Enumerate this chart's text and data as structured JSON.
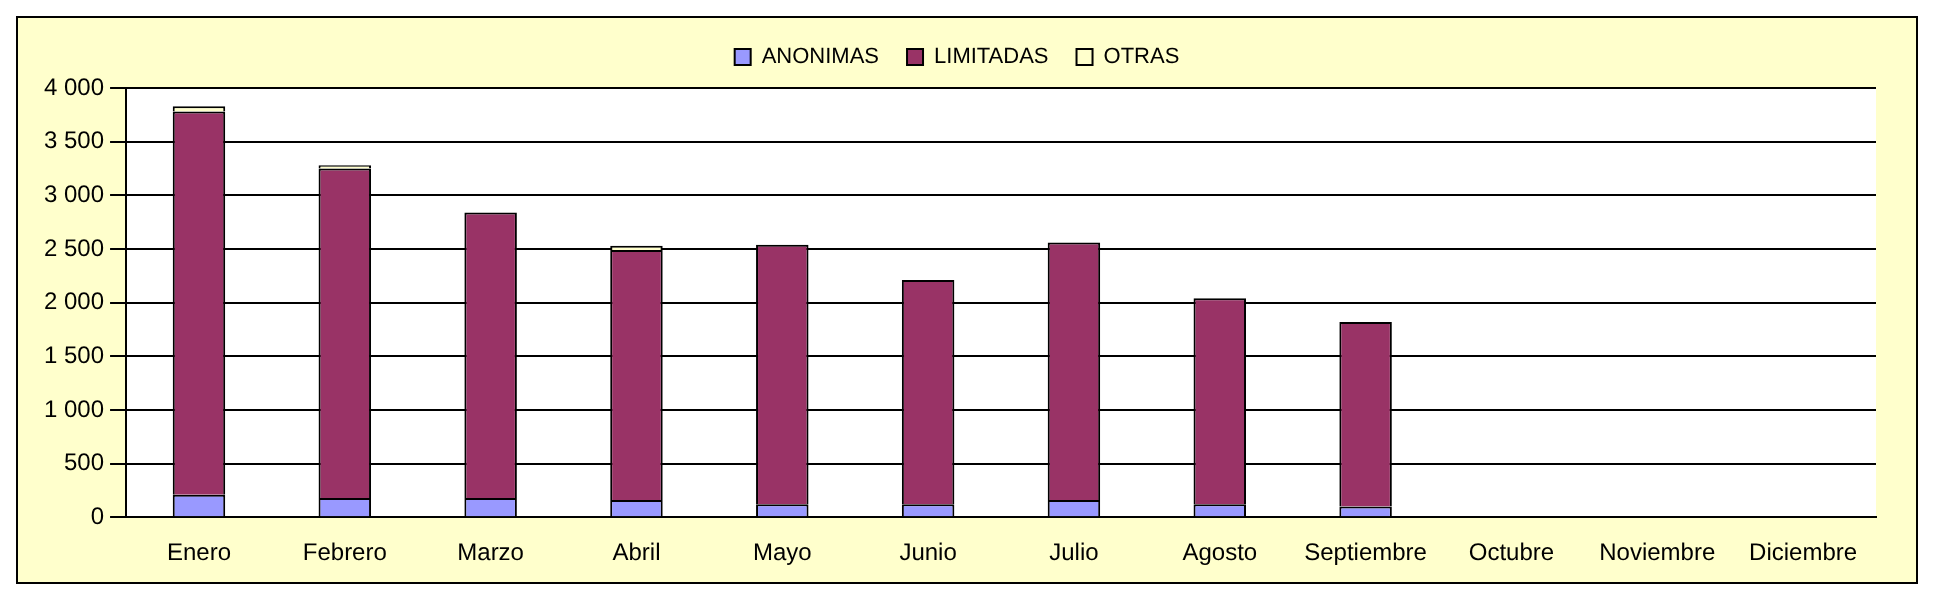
{
  "chart_data": {
    "type": "bar",
    "stacked": true,
    "categories": [
      "Enero",
      "Febrero",
      "Marzo",
      "Abril",
      "Mayo",
      "Junio",
      "Julio",
      "Agosto",
      "Septiembre",
      "Octubre",
      "Noviembre",
      "Diciembre"
    ],
    "series": [
      {
        "name": "ANONIMAS",
        "color": "#9999ff",
        "values": [
          210,
          180,
          180,
          160,
          120,
          120,
          160,
          120,
          100,
          0,
          0,
          0
        ]
      },
      {
        "name": "LIMITADAS",
        "color": "#993366",
        "values": [
          3570,
          3070,
          2660,
          2330,
          2420,
          2090,
          2400,
          1920,
          1720,
          0,
          0,
          0
        ]
      },
      {
        "name": "OTRAS",
        "color": "#ffffcc",
        "values": [
          50,
          30,
          null,
          40,
          null,
          null,
          null,
          null,
          null,
          0,
          0,
          0
        ]
      }
    ],
    "ylim": [
      0,
      4000
    ],
    "yticks": [
      0,
      500,
      {
        "value": 1000,
        "label": "1 000"
      },
      {
        "value": 1500,
        "label": "1 500"
      },
      {
        "value": 2000,
        "label": "2 000"
      },
      {
        "value": 2500,
        "label": "2 500"
      },
      {
        "value": 3000,
        "label": "3 000"
      },
      {
        "value": 3500,
        "label": "3 500"
      },
      {
        "value": 4000,
        "label": "4 000"
      }
    ],
    "grid": "y",
    "legend": "top"
  }
}
